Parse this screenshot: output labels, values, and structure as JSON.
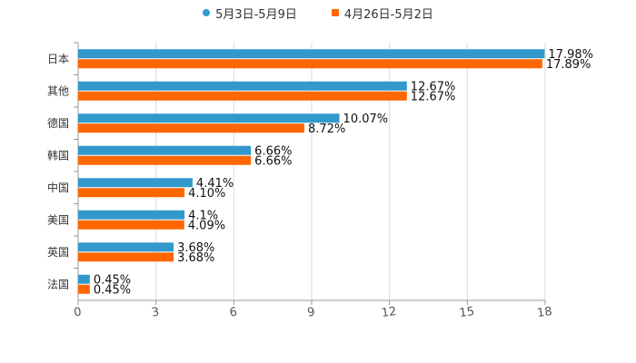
{
  "chart_data": {
    "type": "bar",
    "orientation": "horizontal",
    "title": "",
    "xlabel": "",
    "ylabel": "",
    "xlim": [
      0,
      18
    ],
    "xticks": [
      0,
      3,
      6,
      9,
      12,
      15,
      18
    ],
    "grid": true,
    "legend_position": "top-center",
    "categories": [
      "日本",
      "其他",
      "德国",
      "韩国",
      "中国",
      "美国",
      "英国",
      "法国"
    ],
    "series": [
      {
        "name": "5月3日-5月9日",
        "color": "#3399cc",
        "marker": "circle",
        "values": [
          17.98,
          12.67,
          10.07,
          6.66,
          4.41,
          4.1,
          3.68,
          0.45
        ],
        "labels": [
          "17.98%",
          "12.67%",
          "10.07%",
          "6.66%",
          "4.41%",
          "4.1%",
          "3.68%",
          "0.45%"
        ]
      },
      {
        "name": "4月26日-5月2日",
        "color": "#ff6600",
        "marker": "square",
        "values": [
          17.89,
          12.67,
          8.72,
          6.66,
          4.1,
          4.09,
          3.68,
          0.45
        ],
        "labels": [
          "17.89%",
          "12.67%",
          "8.72%",
          "6.66%",
          "4.10%",
          "4.09%",
          "3.68%",
          "0.45%"
        ]
      }
    ]
  }
}
